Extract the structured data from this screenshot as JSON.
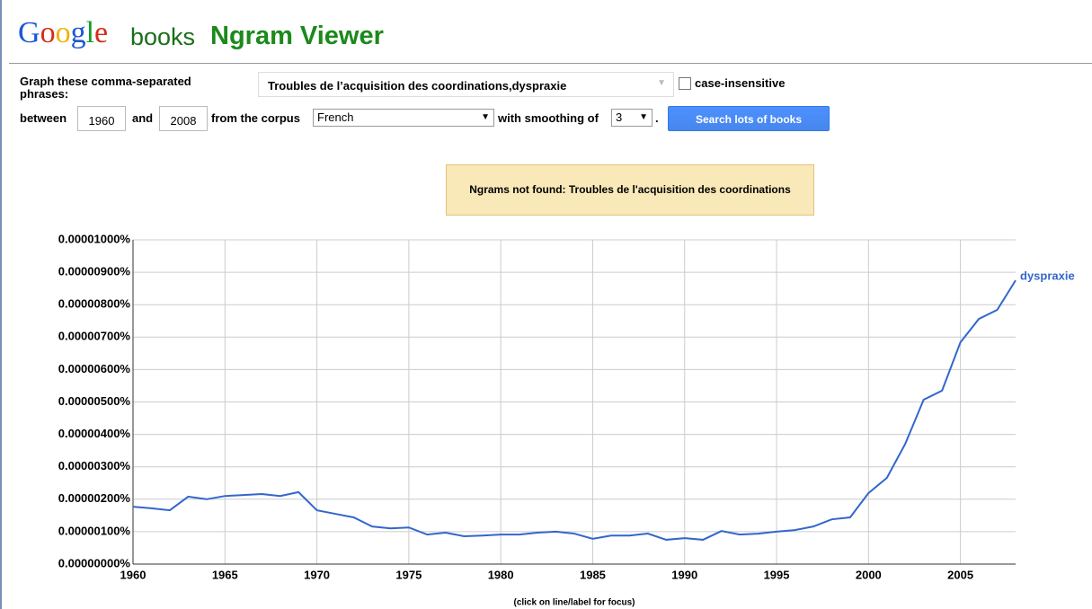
{
  "header": {
    "logo": "Google",
    "books": "books",
    "title": "Ngram Viewer"
  },
  "form": {
    "phrases_label": "Graph these comma-separated phrases:",
    "phrases": "Troubles de l’acquisition des coordinations,dyspraxie",
    "case_insensitive": "case-insensitive",
    "between": "between",
    "start_year": "1960",
    "and": "and",
    "end_year": "2008",
    "corpus_label": "from the corpus",
    "corpus": "French",
    "smoothing_label": "with smoothing of",
    "smoothing": "3",
    "period": ".",
    "button": "Search lots of books"
  },
  "notice": "Ngrams not found: Troubles de l'acquisition des coordinations",
  "chart_data": {
    "type": "line",
    "footnote": "(click on line/label for focus)",
    "x": [
      1960,
      1961,
      1962,
      1963,
      1964,
      1965,
      1966,
      1967,
      1968,
      1969,
      1970,
      1971,
      1972,
      1973,
      1974,
      1975,
      1976,
      1977,
      1978,
      1979,
      1980,
      1981,
      1982,
      1983,
      1984,
      1985,
      1986,
      1987,
      1988,
      1989,
      1990,
      1991,
      1992,
      1993,
      1994,
      1995,
      1996,
      1997,
      1998,
      1999,
      2000,
      2001,
      2002,
      2003,
      2004,
      2005,
      2006,
      2007,
      2008
    ],
    "series": [
      {
        "name": "dyspraxie",
        "color": "#3366cc",
        "values": [
          1.77e-06,
          1.72e-06,
          1.66e-06,
          2.08e-06,
          2e-06,
          2.1e-06,
          2.13e-06,
          2.16e-06,
          2.1e-06,
          2.22e-06,
          1.66e-06,
          1.55e-06,
          1.44e-06,
          1.16e-06,
          1.1e-06,
          1.13e-06,
          9.1e-07,
          9.7e-07,
          8.6e-07,
          8.8e-07,
          9.1e-07,
          9.1e-07,
          9.7e-07,
          1e-06,
          9.4e-07,
          7.8e-07,
          8.8e-07,
          8.8e-07,
          9.4e-07,
          7.5e-07,
          8e-07,
          7.5e-07,
          1.02e-06,
          9.1e-07,
          9.4e-07,
          1e-06,
          1.05e-06,
          1.16e-06,
          1.38e-06,
          1.44e-06,
          2.19e-06,
          2.66e-06,
          3.71e-06,
          5.07e-06,
          5.35e-06,
          6.84e-06,
          7.56e-06,
          7.84e-06,
          8.75e-06
        ]
      }
    ],
    "xlim": [
      1960,
      2008
    ],
    "xticks": [
      1960,
      1965,
      1970,
      1975,
      1980,
      1985,
      1990,
      1995,
      2000,
      2005
    ],
    "ylim": [
      0,
      1e-05
    ],
    "yticks": [
      {
        "value": 0,
        "label": "0.00000000%"
      },
      {
        "value": 1e-06,
        "label": "0.00000100%"
      },
      {
        "value": 2e-06,
        "label": "0.00000200%"
      },
      {
        "value": 3e-06,
        "label": "0.00000300%"
      },
      {
        "value": 4e-06,
        "label": "0.00000400%"
      },
      {
        "value": 5e-06,
        "label": "0.00000500%"
      },
      {
        "value": 6e-06,
        "label": "0.00000600%"
      },
      {
        "value": 7e-06,
        "label": "0.00000700%"
      },
      {
        "value": 8e-06,
        "label": "0.00000800%"
      },
      {
        "value": 9e-06,
        "label": "0.00000900%"
      },
      {
        "value": 1e-05,
        "label": "0.00001000%"
      }
    ],
    "grid": true
  }
}
